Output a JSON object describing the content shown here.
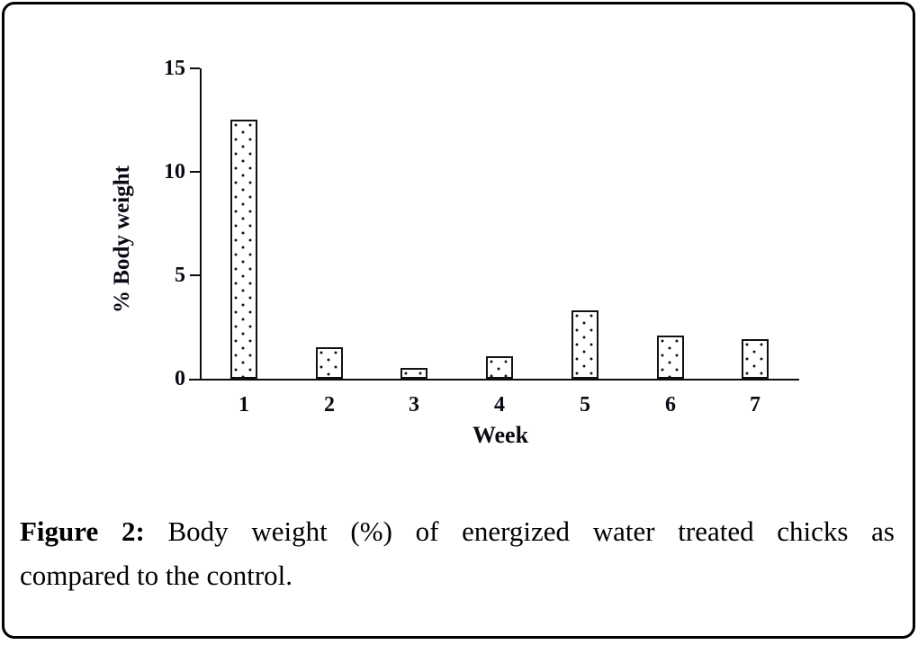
{
  "figure_frame": {
    "border_color": "#000000",
    "background": "#ffffff"
  },
  "chart_data": {
    "type": "bar",
    "title": "",
    "xlabel": "Week",
    "ylabel": "% Body weight",
    "categories": [
      "1",
      "2",
      "3",
      "4",
      "5",
      "6",
      "7"
    ],
    "values": [
      12.5,
      1.5,
      0.5,
      1.1,
      3.3,
      2.1,
      1.9
    ],
    "ylim": [
      0,
      15
    ],
    "yticks": [
      0,
      5,
      10,
      15
    ],
    "grid": false,
    "legend_position": "none",
    "bar_style": {
      "fill": "#ffffff",
      "pattern": "dots",
      "dot_color": "#000000",
      "border_color": "#000000"
    }
  },
  "caption": {
    "label": "Figure 2:",
    "line1_rest": "Body weight (%) of energized water treated chicks as",
    "line2": "compared to the control."
  }
}
